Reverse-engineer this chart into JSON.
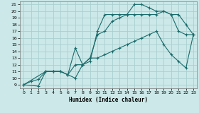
{
  "xlabel": "Humidex (Indice chaleur)",
  "xlim": [
    -0.5,
    23.5
  ],
  "ylim": [
    8.5,
    21.5
  ],
  "xticks": [
    0,
    1,
    2,
    3,
    4,
    5,
    6,
    7,
    8,
    9,
    10,
    11,
    12,
    13,
    14,
    15,
    16,
    17,
    18,
    19,
    20,
    21,
    22,
    23
  ],
  "yticks": [
    9,
    10,
    11,
    12,
    13,
    14,
    15,
    16,
    17,
    18,
    19,
    20,
    21
  ],
  "background_color": "#cce8e8",
  "grid_color": "#aacfcf",
  "line_color": "#1a6b6b",
  "lines": [
    {
      "x": [
        0,
        2,
        3,
        4,
        5,
        6,
        7,
        8,
        9,
        10,
        11,
        12,
        13,
        14,
        15,
        16,
        17,
        18,
        19,
        20,
        21,
        22,
        23
      ],
      "y": [
        9,
        8.8,
        11,
        11,
        11,
        10.5,
        14.5,
        12,
        12.5,
        17,
        19.5,
        19.5,
        19.5,
        19.5,
        21,
        21,
        20.5,
        20,
        20,
        19.5,
        17,
        16.5,
        16.5
      ]
    },
    {
      "x": [
        0,
        1,
        2,
        3,
        4,
        5,
        6,
        7,
        8,
        9,
        10,
        11,
        12,
        13,
        14,
        15,
        16,
        17,
        18,
        19,
        20,
        21,
        22,
        23
      ],
      "y": [
        9,
        9.5,
        9.8,
        11,
        11,
        11,
        10.5,
        12,
        12,
        13,
        16.5,
        17,
        18.5,
        19,
        19.5,
        19.5,
        19.5,
        19.5,
        19.5,
        20,
        19.5,
        19.5,
        18,
        16.5
      ]
    },
    {
      "x": [
        0,
        3,
        4,
        5,
        6,
        7,
        8,
        9,
        10,
        11,
        12,
        13,
        14,
        15,
        16,
        17,
        18,
        19,
        20,
        21,
        22,
        23
      ],
      "y": [
        9,
        11,
        11,
        11,
        10.5,
        10,
        12,
        13,
        13,
        13.5,
        14,
        14.5,
        15,
        15.5,
        16,
        16.5,
        17,
        15,
        13.5,
        12.5,
        11.5,
        16.5
      ]
    }
  ]
}
